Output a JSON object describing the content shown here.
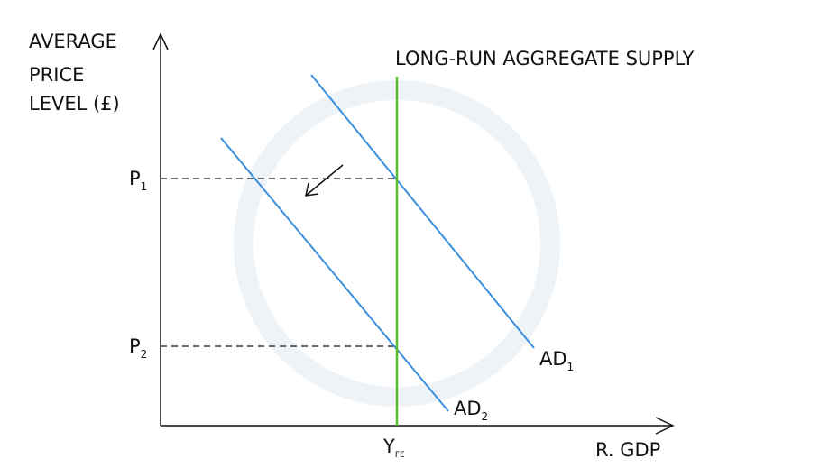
{
  "axes": {
    "y_label": [
      "AVERAGE",
      "PRICE",
      "LEVEL (£)"
    ],
    "x_label": "R. GDP"
  },
  "curves": {
    "lras": "LONG-RUN AGGREGATE SUPPLY",
    "ad1": {
      "main": "AD",
      "sub": "1"
    },
    "ad2": {
      "main": "AD",
      "sub": "2"
    }
  },
  "levels": {
    "p1": {
      "main": "P",
      "sub": "1"
    },
    "p2": {
      "main": "P",
      "sub": "2"
    }
  },
  "output": {
    "main": "Y",
    "sub": "FE"
  }
}
